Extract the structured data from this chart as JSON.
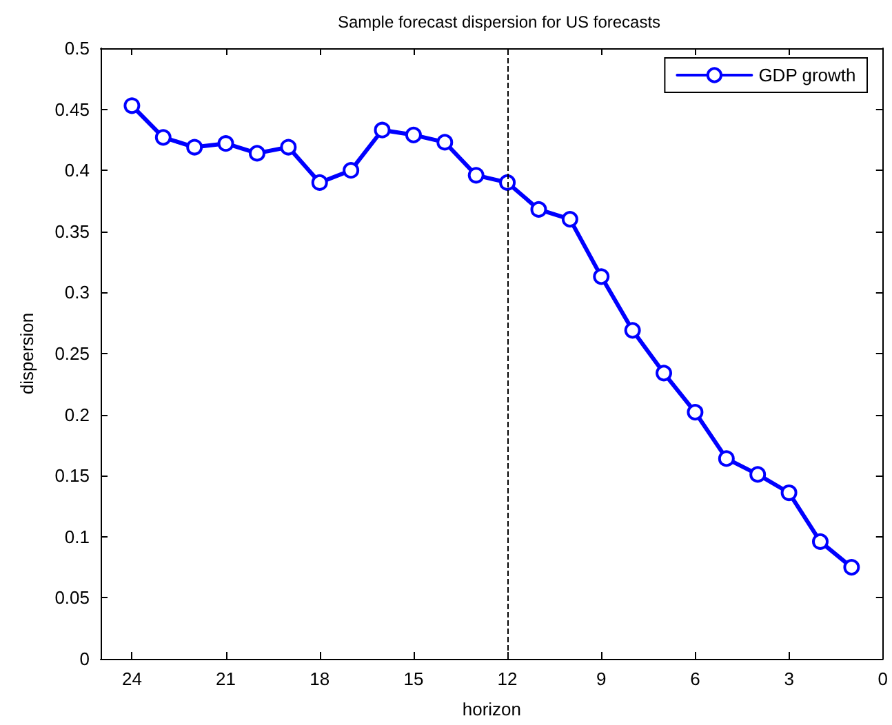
{
  "chart_data": {
    "type": "line",
    "title": "Sample forecast dispersion for US forecasts",
    "xlabel": "horizon",
    "ylabel": "dispersion",
    "x": [
      24,
      23,
      22,
      21,
      20,
      19,
      18,
      17,
      16,
      15,
      14,
      13,
      12,
      11,
      10,
      9,
      8,
      7,
      6,
      5,
      4,
      3,
      2,
      1
    ],
    "series": [
      {
        "name": "GDP growth",
        "color": "#0000ff",
        "values": [
          0.453,
          0.427,
          0.419,
          0.422,
          0.414,
          0.419,
          0.39,
          0.4,
          0.433,
          0.429,
          0.423,
          0.396,
          0.39,
          0.368,
          0.36,
          0.313,
          0.269,
          0.234,
          0.202,
          0.164,
          0.151,
          0.136,
          0.096,
          0.075
        ]
      }
    ],
    "xlim": [
      25,
      0
    ],
    "xticks": [
      24,
      21,
      18,
      15,
      12,
      9,
      6,
      3,
      0
    ],
    "ylim": [
      0,
      0.5
    ],
    "yticks": [
      0,
      0.05,
      0.1,
      0.15,
      0.2,
      0.25,
      0.3,
      0.35,
      0.4,
      0.45,
      0.5
    ],
    "ref_lines": [
      {
        "axis": "x",
        "value": 12,
        "color": "#000000",
        "line_style": "dashed"
      }
    ],
    "legend": "top right",
    "marker": "circle",
    "line_style": "solid"
  }
}
